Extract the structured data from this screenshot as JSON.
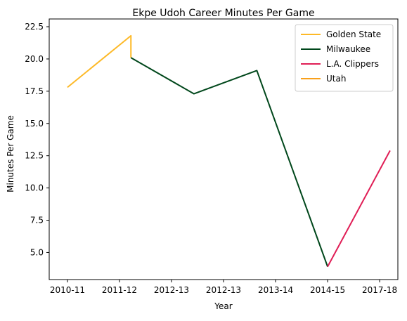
{
  "chart_data": {
    "type": "line",
    "title": "Ekpe Udoh Career Minutes Per Game",
    "xlabel": "Year",
    "ylabel": "Minutes Per Game",
    "x_ticks": [
      "2010-11",
      "2011-12",
      "2012-13",
      "2012-13",
      "2013-14",
      "2014-15",
      "2017-18"
    ],
    "y_ticks": [
      "5.0",
      "7.5",
      "10.0",
      "12.5",
      "15.0",
      "17.5",
      "20.0",
      "22.5"
    ],
    "xlim": [
      -0.35,
      6.35
    ],
    "ylim": [
      2.9,
      23.1
    ],
    "grid": false,
    "legend_placement": "upper-right",
    "series": [
      {
        "name": "Golden State",
        "color": "#FDB927",
        "x": [
          0,
          1.22,
          1.22
        ],
        "y": [
          17.8,
          21.8,
          20.1
        ]
      },
      {
        "name": "Milwaukee",
        "color": "#00471B",
        "x": [
          1.22,
          2.43,
          3.64,
          5.0
        ],
        "y": [
          20.1,
          17.3,
          19.1,
          3.9
        ]
      },
      {
        "name": "L.A. Clippers",
        "color": "#E01E56",
        "x": [
          5.0,
          6.2
        ],
        "y": [
          3.9,
          12.9
        ]
      },
      {
        "name": "Utah",
        "color": "#F9A01B",
        "x": [],
        "y": []
      }
    ]
  }
}
